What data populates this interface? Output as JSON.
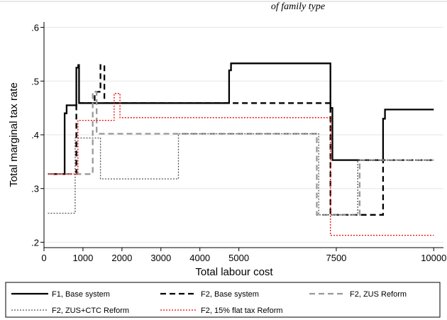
{
  "top_caption": "of family type",
  "chart_data": {
    "type": "line",
    "xlabel": "Total labour cost",
    "ylabel": "Total marginal tax rate",
    "xlim": [
      0,
      10250
    ],
    "ylim": [
      0.19,
      0.61
    ],
    "xticks": [
      0,
      1000,
      2000,
      3000,
      4000,
      5000,
      7500,
      10000
    ],
    "xtick_labels": [
      "0",
      "1000",
      "2000",
      "3000",
      "4000",
      "5000",
      "7500",
      "10000"
    ],
    "yticks": [
      0.2,
      0.3,
      0.4,
      0.5,
      0.6
    ],
    "ytick_labels": [
      ".2",
      ".3",
      ".4",
      ".5",
      ".6"
    ],
    "grid": "horizontal",
    "legend_position": "bottom",
    "series": [
      {
        "name": "F1, Base system",
        "color": "#000000",
        "style": "solid",
        "x": [
          100,
          530,
          530,
          580,
          580,
          830,
          830,
          880,
          880,
          900,
          900,
          4750,
          4750,
          4800,
          4800,
          7350,
          7350,
          7400,
          7400,
          8700,
          8700,
          8750,
          8750,
          10000
        ],
        "y": [
          0.327,
          0.327,
          0.44,
          0.44,
          0.455,
          0.455,
          0.525,
          0.525,
          0.53,
          0.53,
          0.459,
          0.459,
          0.52,
          0.52,
          0.533,
          0.533,
          0.45,
          0.45,
          0.353,
          0.353,
          0.43,
          0.43,
          0.447,
          0.447
        ]
      },
      {
        "name": "F2, Base system",
        "color": "#000000",
        "style": "dashed",
        "x": [
          100,
          830,
          830,
          1300,
          1300,
          1450,
          1450,
          1550,
          1550,
          7350,
          7350,
          8700,
          8700,
          10000
        ],
        "y": [
          0.327,
          0.327,
          0.459,
          0.459,
          0.48,
          0.48,
          0.53,
          0.53,
          0.459,
          0.459,
          0.251,
          0.251,
          0.353,
          0.353
        ]
      },
      {
        "name": "F2, ZUS Reform",
        "color": "#999999",
        "style": "dashed",
        "x": [
          100,
          1250,
          1250,
          1350,
          1350,
          7000,
          7000,
          8100,
          8100,
          10000
        ],
        "y": [
          0.327,
          0.327,
          0.48,
          0.48,
          0.402,
          0.402,
          0.251,
          0.251,
          0.353,
          0.353
        ]
      },
      {
        "name": "F2, ZUS+CTC Reform",
        "color": "#555555",
        "style": "dotted",
        "x": [
          100,
          800,
          800,
          1450,
          1450,
          3450,
          3450,
          7050,
          7050,
          8050,
          8050,
          10000
        ],
        "y": [
          0.254,
          0.254,
          0.394,
          0.394,
          0.318,
          0.318,
          0.402,
          0.402,
          0.251,
          0.251,
          0.353,
          0.353
        ]
      },
      {
        "name": "F2, 15% flat tax Reform",
        "color": "#ee0000",
        "style": "dotted",
        "x": [
          100,
          870,
          870,
          1800,
          1800,
          1950,
          1950,
          7350,
          7350,
          10000
        ],
        "y": [
          0.327,
          0.327,
          0.427,
          0.427,
          0.477,
          0.477,
          0.432,
          0.432,
          0.213,
          0.213
        ]
      }
    ]
  }
}
